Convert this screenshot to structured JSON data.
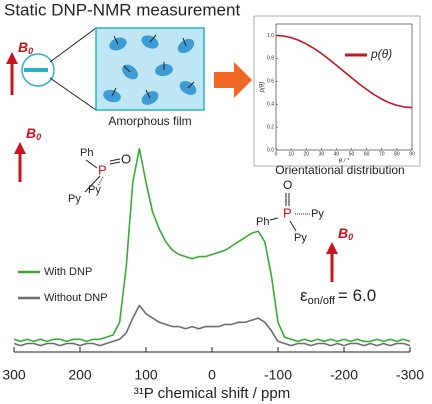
{
  "title": "Static DNP-NMR measurement",
  "field_label": {
    "main": "B",
    "sub": "0"
  },
  "film_label": "Amorphous film",
  "inset_caption": "Orientational distribution",
  "molecules": [
    {
      "phenyl": "Ph",
      "phosphorus": "P",
      "oxygen": "O",
      "pyridyl_1": "Py",
      "pyridyl_2": "Py"
    },
    {
      "phenyl": "Ph",
      "phosphorus": "P",
      "oxygen": "O",
      "pyridyl_1": "Py",
      "pyridyl_2": "Py"
    }
  ],
  "enhancement": {
    "symbol": "ε",
    "sub": "on/off",
    "relation": "= 6.0"
  },
  "chart_data": [
    {
      "type": "line",
      "x_label": "³¹P chemical shift / ppm",
      "x": [
        300,
        290,
        280,
        270,
        260,
        250,
        240,
        230,
        220,
        210,
        200,
        190,
        180,
        170,
        160,
        150,
        140,
        130,
        120,
        110,
        100,
        90,
        80,
        70,
        60,
        50,
        40,
        30,
        20,
        10,
        0,
        -10,
        -20,
        -30,
        -40,
        -50,
        -60,
        -70,
        -80,
        -90,
        -100,
        -110,
        -120,
        -130,
        -140,
        -150,
        -160,
        -170,
        -180,
        -190,
        -200,
        -210,
        -220,
        -230,
        -240,
        -250,
        -260,
        -270,
        -280,
        -290,
        -300
      ],
      "xlim": [
        300,
        -300
      ],
      "xticks": [
        300,
        200,
        100,
        0,
        -100,
        -200,
        -300
      ],
      "ylim": [
        0,
        100
      ],
      "series": [
        {
          "name": "With DNP",
          "color": "#3aaa35",
          "values": [
            6,
            5,
            6,
            5,
            6,
            5,
            6,
            6,
            5,
            6,
            6,
            5,
            6,
            6,
            7,
            8,
            14,
            40,
            80,
            96,
            80,
            66,
            58,
            52,
            48,
            46,
            45,
            44,
            45,
            45,
            46,
            47,
            48,
            50,
            52,
            54,
            56,
            57,
            52,
            36,
            14,
            7,
            6,
            5,
            6,
            5,
            6,
            5,
            6,
            5,
            6,
            5,
            6,
            5,
            5,
            6,
            5,
            6,
            5,
            6,
            5
          ]
        },
        {
          "name": "Without DNP",
          "color": "#6d6e70",
          "values": [
            4,
            3,
            4,
            4,
            3,
            4,
            4,
            3,
            4,
            4,
            3,
            4,
            4,
            3,
            4,
            5,
            6,
            9,
            16,
            22,
            18,
            16,
            14,
            13,
            12,
            12,
            11,
            12,
            11,
            12,
            12,
            12,
            13,
            13,
            14,
            14,
            15,
            16,
            14,
            10,
            5,
            4,
            3,
            4,
            4,
            3,
            4,
            4,
            3,
            4,
            3,
            4,
            4,
            3,
            4,
            3,
            4,
            3,
            4,
            4,
            3
          ]
        }
      ],
      "legend": "left"
    },
    {
      "type": "line",
      "x_label": "θ / °",
      "y_label": "p(θ)",
      "x": [
        0,
        5,
        10,
        15,
        20,
        25,
        30,
        35,
        40,
        45,
        50,
        55,
        60,
        65,
        70,
        75,
        80,
        85,
        90
      ],
      "xlim": [
        0,
        90
      ],
      "xticks": [
        0,
        10,
        20,
        30,
        40,
        50,
        60,
        70,
        80,
        90
      ],
      "ylim": [
        0,
        1.1
      ],
      "yticks": [
        {
          "value": 0,
          "label": "0.0"
        },
        {
          "value": 0.2,
          "label": "0.2"
        },
        {
          "value": 0.4,
          "label": "0.4"
        },
        {
          "value": 0.6,
          "label": "0.6"
        },
        {
          "value": 0.8,
          "label": "0.8"
        },
        {
          "value": 1.0,
          "label": "1.0"
        }
      ],
      "series": [
        {
          "name": "p(θ)",
          "color": "#c4161c",
          "values": [
            1.0,
            0.995,
            0.981,
            0.958,
            0.926,
            0.888,
            0.843,
            0.793,
            0.74,
            0.685,
            0.63,
            0.577,
            0.528,
            0.483,
            0.444,
            0.412,
            0.389,
            0.375,
            0.37
          ]
        }
      ],
      "legend": "upper right"
    }
  ]
}
